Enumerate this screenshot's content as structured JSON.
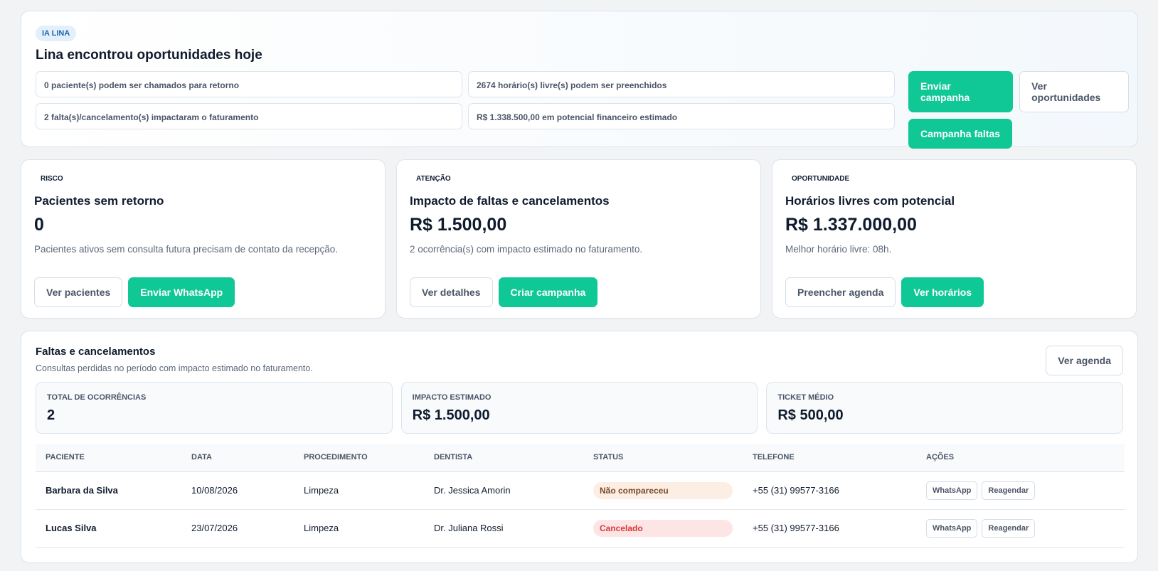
{
  "banner": {
    "badge": "IA LINA",
    "title": "Lina encontrou oportunidades hoje",
    "items": [
      "0 paciente(s) podem ser chamados para retorno",
      "2674 horário(s) livre(s) podem ser preenchidos",
      "2 falta(s)/cancelamento(s) impactaram o faturamento",
      "R$ 1.338.500,00 em potencial financeiro estimado"
    ],
    "buttons": [
      "Enviar campanha",
      "Ver oportunidades",
      "Campanha faltas"
    ]
  },
  "cards": [
    {
      "tag": "RISCO",
      "title": "Pacientes sem retorno",
      "value": "0",
      "description": "Pacientes ativos sem consulta futura precisam de contato da recepção.",
      "buttons": [
        "Ver pacientes",
        "Enviar WhatsApp"
      ]
    },
    {
      "tag": "ATENÇÃO",
      "title": "Impacto de faltas e cancelamentos",
      "value": "R$ 1.500,00",
      "description": "2 ocorrência(s) com impacto estimado no faturamento.",
      "buttons": [
        "Ver detalhes",
        "Criar campanha"
      ]
    },
    {
      "tag": "OPORTUNIDADE",
      "title": "Horários livres com potencial",
      "value": "R$ 1.337.000,00",
      "description": "Melhor horário livre: 08h.",
      "buttons": [
        "Preencher agenda",
        "Ver horários"
      ]
    }
  ],
  "section": {
    "title": "Faltas e cancelamentos",
    "subtitle": "Consultas perdidas no período com impacto estimado no faturamento.",
    "button": "Ver agenda",
    "stats": [
      {
        "label": "TOTAL DE OCORRÊNCIAS",
        "value": "2"
      },
      {
        "label": "IMPACTO ESTIMADO",
        "value": "R$ 1.500,00"
      },
      {
        "label": "TICKET MÉDIO",
        "value": "R$ 500,00"
      }
    ],
    "table": {
      "columns": [
        "PACIENTE",
        "DATA",
        "PROCEDIMENTO",
        "DENTISTA",
        "STATUS",
        "TELEFONE",
        "AÇÕES"
      ],
      "rows": [
        [
          "Barbara da Silva",
          "10/08/2026",
          "Limpeza",
          "Dr. Jessica Amorin",
          "Não compareceu",
          "+55 (31) 99577-3166",
          [
            "WhatsApp",
            "Reagendar"
          ]
        ],
        [
          "Lucas Silva",
          "23/07/2026",
          "Limpeza",
          "Dr. Juliana Rossi",
          "Cancelado",
          "+55 (31) 99577-3166",
          [
            "WhatsApp",
            "Reagendar"
          ]
        ]
      ]
    }
  }
}
